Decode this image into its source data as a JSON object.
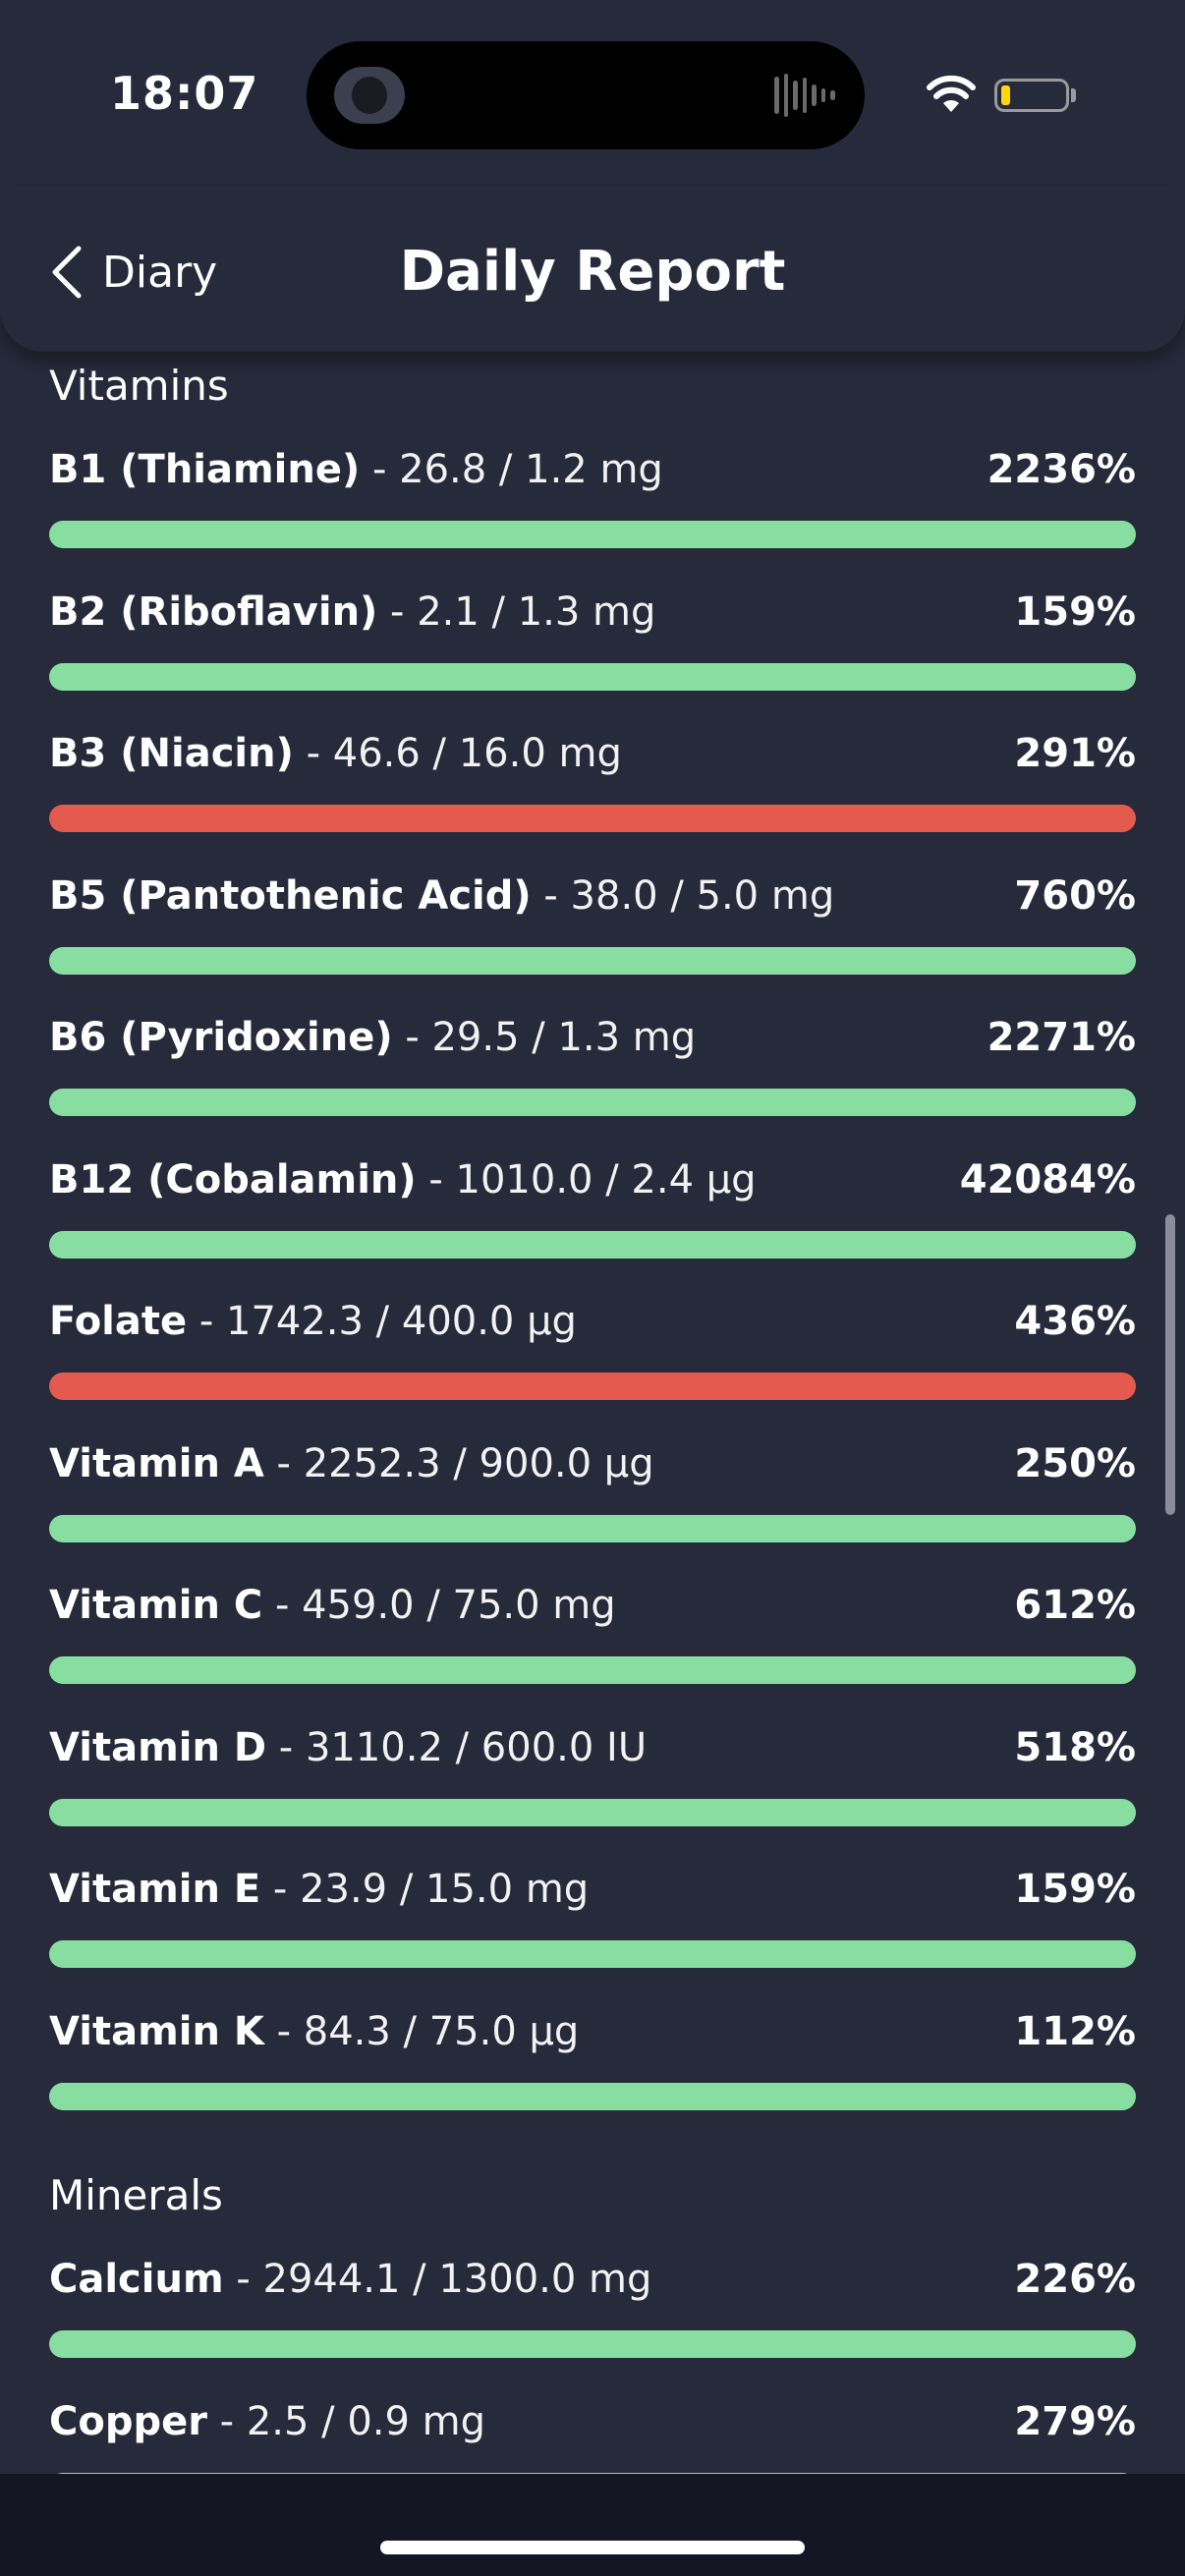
{
  "status_bar": {
    "time": "18:07",
    "wifi_icon": "wifi-icon",
    "battery_icon": "battery-icon",
    "battery_color": "#ffd60a"
  },
  "nav": {
    "back_label": "Diary",
    "title": "Daily Report"
  },
  "colors": {
    "good": "#88dea1",
    "high": "#e55a4f",
    "background": "#272a3a"
  },
  "sections": [
    {
      "title": "Vitamins",
      "items": [
        {
          "name": "B1 (Thiamine)",
          "amount": " - 26.8 / 1.2 mg",
          "percent": "2236%",
          "status": "good"
        },
        {
          "name": "B2 (Riboflavin)",
          "amount": " - 2.1 / 1.3 mg",
          "percent": "159%",
          "status": "good"
        },
        {
          "name": "B3 (Niacin)",
          "amount": " - 46.6 / 16.0 mg",
          "percent": "291%",
          "status": "high"
        },
        {
          "name": "B5 (Pantothenic Acid)",
          "amount": " - 38.0 / 5.0 mg",
          "percent": "760%",
          "status": "good"
        },
        {
          "name": "B6 (Pyridoxine)",
          "amount": " - 29.5 / 1.3 mg",
          "percent": "2271%",
          "status": "good"
        },
        {
          "name": "B12 (Cobalamin)",
          "amount": " - 1010.0 / 2.4 µg",
          "percent": "42084%",
          "status": "good"
        },
        {
          "name": "Folate",
          "amount": " - 1742.3 / 400.0 µg",
          "percent": "436%",
          "status": "high"
        },
        {
          "name": "Vitamin A",
          "amount": " - 2252.3 / 900.0 µg",
          "percent": "250%",
          "status": "good"
        },
        {
          "name": "Vitamin C",
          "amount": " - 459.0 / 75.0 mg",
          "percent": "612%",
          "status": "good"
        },
        {
          "name": "Vitamin D",
          "amount": " - 3110.2 / 600.0 IU",
          "percent": "518%",
          "status": "good"
        },
        {
          "name": "Vitamin E",
          "amount": " - 23.9 / 15.0 mg",
          "percent": "159%",
          "status": "good"
        },
        {
          "name": "Vitamin K",
          "amount": " - 84.3 / 75.0 µg",
          "percent": "112%",
          "status": "good"
        }
      ]
    },
    {
      "title": "Minerals",
      "items": [
        {
          "name": "Calcium",
          "amount": " - 2944.1 / 1300.0 mg",
          "percent": "226%",
          "status": "good"
        },
        {
          "name": "Copper",
          "amount": " - 2.5 / 0.9 mg",
          "percent": "279%",
          "status": "good"
        }
      ]
    }
  ]
}
